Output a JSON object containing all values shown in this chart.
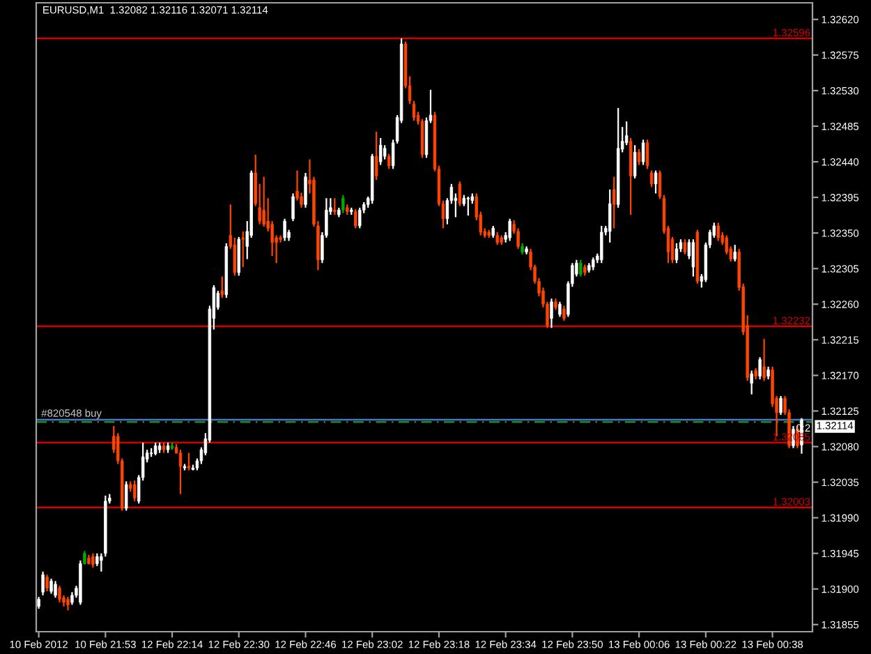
{
  "chart_data": {
    "type": "candlestick",
    "title": "EURUSD,M1  1.32082 1.32116 1.32071 1.32114",
    "categories": [
      "10 Feb 2012",
      null,
      null,
      null,
      null,
      null,
      null,
      null,
      null,
      null,
      null,
      null,
      null,
      null,
      null,
      null,
      "10 Feb 21:53",
      null,
      null,
      null,
      null,
      null,
      null,
      null,
      null,
      null,
      null,
      null,
      null,
      null,
      null,
      null,
      "12 Feb 22:14",
      null,
      null,
      null,
      null,
      null,
      null,
      null,
      null,
      null,
      null,
      null,
      null,
      null,
      null,
      null,
      "12 Feb 22:30",
      null,
      null,
      null,
      null,
      null,
      null,
      null,
      null,
      null,
      null,
      null,
      null,
      null,
      null,
      null,
      "12 Feb 22:46",
      null,
      null,
      null,
      null,
      null,
      null,
      null,
      null,
      null,
      null,
      null,
      null,
      null,
      null,
      null,
      "12 Feb 23:02",
      null,
      null,
      null,
      null,
      null,
      null,
      null,
      null,
      null,
      null,
      null,
      null,
      null,
      null,
      null,
      "12 Feb 23:18",
      null,
      null,
      null,
      null,
      null,
      null,
      null,
      null,
      null,
      null,
      null,
      null,
      null,
      null,
      null,
      "12 Feb 23:34",
      null,
      null,
      null,
      null,
      null,
      null,
      null,
      null,
      null,
      null,
      null,
      null,
      null,
      null,
      null,
      "12 Feb 23:50",
      null,
      null,
      null,
      null,
      null,
      null,
      null,
      null,
      null,
      null,
      null,
      null,
      null,
      null,
      null,
      "13 Feb 00:06",
      null,
      null,
      null,
      null,
      null,
      null,
      null,
      null,
      null,
      null,
      null,
      null,
      null,
      null,
      null,
      "13 Feb 00:22",
      null,
      null,
      null,
      null,
      null,
      null,
      null,
      null,
      null,
      null,
      null,
      null,
      null,
      null,
      null,
      "13 Feb 00:38",
      null,
      null,
      null,
      null,
      null,
      null,
      null
    ],
    "ohlc": [
      [
        1.31878,
        1.3189,
        1.31875,
        1.31887
      ],
      [
        1.31896,
        1.31922,
        1.31892,
        1.31918
      ],
      [
        1.31915,
        1.31918,
        1.31897,
        1.31901
      ],
      [
        1.31897,
        1.31913,
        1.31894,
        1.3191
      ],
      [
        1.31892,
        1.3191,
        1.31889,
        1.31906
      ],
      [
        1.31901,
        1.31904,
        1.31883,
        1.31887
      ],
      [
        1.31889,
        1.31892,
        1.31878,
        1.31883
      ],
      [
        1.31887,
        1.3189,
        1.31873,
        1.3188
      ],
      [
        1.31883,
        1.31896,
        1.3188,
        1.31892
      ],
      [
        1.31892,
        1.31904,
        1.31889,
        1.31901
      ],
      [
        1.31883,
        1.31936,
        1.3188,
        1.31932
      ],
      [
        1.31932,
        1.31948,
        1.31931,
        1.31945
      ],
      [
        1.31939,
        1.31943,
        1.31931,
        1.31932
      ],
      [
        1.31941,
        1.31945,
        1.31927,
        1.31931
      ],
      [
        1.31932,
        1.31945,
        1.31929,
        1.31941
      ],
      [
        1.31936,
        1.31945,
        1.31922,
        1.31941
      ],
      [
        1.31945,
        1.32018,
        1.31941,
        1.32011
      ],
      [
        1.32011,
        1.3202,
        1.32008,
        1.32015
      ],
      [
        1.32093,
        1.32106,
        1.32072,
        1.32076
      ],
      [
        1.32093,
        1.32097,
        1.32058,
        1.32062
      ],
      [
        1.32062,
        1.32065,
        1.31999,
        1.32002
      ],
      [
        1.32002,
        1.32036,
        1.31999,
        1.32032
      ],
      [
        1.32032,
        1.32036,
        1.32023,
        1.32027
      ],
      [
        1.32032,
        1.32037,
        1.32011,
        1.32015
      ],
      [
        1.32011,
        1.32044,
        1.32008,
        1.32041
      ],
      [
        1.32041,
        1.32085,
        1.32037,
        1.32067
      ],
      [
        1.32064,
        1.32076,
        1.3206,
        1.32072
      ],
      [
        1.32071,
        1.32078,
        1.32067,
        1.32072
      ],
      [
        1.32071,
        1.32085,
        1.32069,
        1.32081
      ],
      [
        1.32076,
        1.32085,
        1.32072,
        1.32081
      ],
      [
        1.32081,
        1.32085,
        1.32072,
        1.32076
      ],
      [
        1.32076,
        1.32085,
        1.32072,
        1.32081
      ],
      [
        1.32078,
        1.32085,
        1.32076,
        1.32081
      ],
      [
        1.32079,
        1.32083,
        1.32071,
        1.32072
      ],
      [
        1.32072,
        1.32076,
        1.3202,
        1.32055
      ],
      [
        1.32053,
        1.32058,
        1.3205,
        1.32055
      ],
      [
        1.32055,
        1.32072,
        1.3205,
        1.32053
      ],
      [
        1.32051,
        1.32057,
        1.3205,
        1.32053
      ],
      [
        1.32053,
        1.32065,
        1.3205,
        1.32062
      ],
      [
        1.32062,
        1.32079,
        1.32058,
        1.32076
      ],
      [
        1.32072,
        1.32097,
        1.32069,
        1.3209
      ],
      [
        1.32088,
        1.32258,
        1.32085,
        1.32254
      ],
      [
        1.32242,
        1.32284,
        1.32228,
        1.32281
      ],
      [
        1.32256,
        1.32277,
        1.32253,
        1.32274
      ],
      [
        1.32277,
        1.32295,
        1.32268,
        1.32272
      ],
      [
        1.32272,
        1.32337,
        1.32268,
        1.32333
      ],
      [
        1.32347,
        1.32386,
        1.3233,
        1.32333
      ],
      [
        1.32335,
        1.32344,
        1.32296,
        1.323
      ],
      [
        1.323,
        1.32345,
        1.32296,
        1.32342
      ],
      [
        1.32344,
        1.32352,
        1.32307,
        1.32342
      ],
      [
        1.32333,
        1.32365,
        1.32317,
        1.32352
      ],
      [
        1.32347,
        1.32429,
        1.32344,
        1.32426
      ],
      [
        1.32426,
        1.32449,
        1.32384,
        1.32387
      ],
      [
        1.32382,
        1.32412,
        1.32361,
        1.32365
      ],
      [
        1.32379,
        1.32421,
        1.32358,
        1.32361
      ],
      [
        1.32365,
        1.32394,
        1.32352,
        1.32356
      ],
      [
        1.32361,
        1.32365,
        1.32321,
        1.32338
      ],
      [
        1.32344,
        1.32347,
        1.32312,
        1.32338
      ],
      [
        1.32344,
        1.32347,
        1.32338,
        1.32342
      ],
      [
        1.32344,
        1.32368,
        1.3234,
        1.32365
      ],
      [
        1.32344,
        1.32354,
        1.3234,
        1.32351
      ],
      [
        1.32368,
        1.324,
        1.32365,
        1.32396
      ],
      [
        1.32403,
        1.32429,
        1.32391,
        1.32394
      ],
      [
        1.32396,
        1.32401,
        1.32382,
        1.32386
      ],
      [
        1.32386,
        1.32426,
        1.32382,
        1.32421
      ],
      [
        1.32417,
        1.32443,
        1.324,
        1.32412
      ],
      [
        1.32417,
        1.32421,
        1.32358,
        1.32361
      ],
      [
        1.32359,
        1.32365,
        1.32303,
        1.32316
      ],
      [
        1.32316,
        1.32351,
        1.32312,
        1.32347
      ],
      [
        1.32347,
        1.32394,
        1.32344,
        1.32379
      ],
      [
        1.32377,
        1.32394,
        1.32373,
        1.32382
      ],
      [
        1.32379,
        1.32394,
        1.32373,
        1.32377
      ],
      [
        1.32373,
        1.32382,
        1.3237,
        1.32379
      ],
      [
        1.32379,
        1.32398,
        1.32375,
        1.32394
      ],
      [
        1.32382,
        1.32386,
        1.32373,
        1.32377
      ],
      [
        1.32377,
        1.32382,
        1.32373,
        1.32379
      ],
      [
        1.32377,
        1.3238,
        1.32356,
        1.32359
      ],
      [
        1.32359,
        1.32382,
        1.32356,
        1.32379
      ],
      [
        1.32379,
        1.32389,
        1.32375,
        1.32386
      ],
      [
        1.32386,
        1.32396,
        1.32382,
        1.32394
      ],
      [
        1.32391,
        1.3245,
        1.32387,
        1.32447
      ],
      [
        1.32447,
        1.32478,
        1.32417,
        1.32422
      ],
      [
        1.3244,
        1.3247,
        1.32436,
        1.32461
      ],
      [
        1.32447,
        1.32461,
        1.32443,
        1.32457
      ],
      [
        1.32447,
        1.3245,
        1.32431,
        1.32435
      ],
      [
        1.32435,
        1.32468,
        1.32431,
        1.32464
      ],
      [
        1.32466,
        1.32499,
        1.32463,
        1.32496
      ],
      [
        1.32492,
        1.32596,
        1.32489,
        1.32589
      ],
      [
        1.32589,
        1.32592,
        1.32533,
        1.32536
      ],
      [
        1.32536,
        1.32548,
        1.32513,
        1.32517
      ],
      [
        1.32513,
        1.32517,
        1.32492,
        1.32496
      ],
      [
        1.32499,
        1.32503,
        1.32487,
        1.32491
      ],
      [
        1.32491,
        1.32494,
        1.32445,
        1.32449
      ],
      [
        1.32449,
        1.32496,
        1.32445,
        1.32492
      ],
      [
        1.32492,
        1.32531,
        1.32489,
        1.32499
      ],
      [
        1.32499,
        1.32503,
        1.32428,
        1.32431
      ],
      [
        1.32431,
        1.32435,
        1.32384,
        1.32387
      ],
      [
        1.32387,
        1.32391,
        1.32356,
        1.32368
      ],
      [
        1.32368,
        1.32394,
        1.32361,
        1.32391
      ],
      [
        1.32391,
        1.32412,
        1.32387,
        1.32408
      ],
      [
        1.32391,
        1.324,
        1.3237,
        1.32394
      ],
      [
        1.32412,
        1.32415,
        1.32384,
        1.32387
      ],
      [
        1.32387,
        1.32398,
        1.32384,
        1.32394
      ],
      [
        1.32393,
        1.32396,
        1.32372,
        1.32394
      ],
      [
        1.32391,
        1.324,
        1.32387,
        1.32396
      ],
      [
        1.32396,
        1.324,
        1.32366,
        1.3237
      ],
      [
        1.32373,
        1.32377,
        1.32347,
        1.32351
      ],
      [
        1.32352,
        1.32356,
        1.32344,
        1.32347
      ],
      [
        1.32351,
        1.32354,
        1.32344,
        1.32347
      ],
      [
        1.32347,
        1.32359,
        1.32344,
        1.32356
      ],
      [
        1.32347,
        1.32351,
        1.32335,
        1.32338
      ],
      [
        1.32344,
        1.32347,
        1.32335,
        1.32338
      ],
      [
        1.32342,
        1.32351,
        1.32338,
        1.32347
      ],
      [
        1.32344,
        1.32368,
        1.3234,
        1.32365
      ],
      [
        1.32361,
        1.32366,
        1.32349,
        1.32352
      ],
      [
        1.32352,
        1.32356,
        1.3233,
        1.32333
      ],
      [
        1.32326,
        1.32337,
        1.32323,
        1.32333
      ],
      [
        1.32326,
        1.32333,
        1.32323,
        1.3233
      ],
      [
        1.32326,
        1.3233,
        1.32303,
        1.32307
      ],
      [
        1.32307,
        1.3231,
        1.32286,
        1.32289
      ],
      [
        1.32289,
        1.32293,
        1.3227,
        1.32274
      ],
      [
        1.32277,
        1.32281,
        1.32256,
        1.3226
      ],
      [
        1.3226,
        1.32263,
        1.3223,
        1.32233
      ],
      [
        1.32242,
        1.32267,
        1.3223,
        1.32263
      ],
      [
        1.32263,
        1.32267,
        1.32253,
        1.32256
      ],
      [
        1.32247,
        1.32263,
        1.32244,
        1.3226
      ],
      [
        1.32254,
        1.32258,
        1.32239,
        1.32242
      ],
      [
        1.32247,
        1.32289,
        1.32244,
        1.32286
      ],
      [
        1.32286,
        1.32312,
        1.32282,
        1.32309
      ],
      [
        1.32298,
        1.32316,
        1.32295,
        1.32312
      ],
      [
        1.32298,
        1.32316,
        1.32295,
        1.32312
      ],
      [
        1.32307,
        1.3231,
        1.32296,
        1.323
      ],
      [
        1.32303,
        1.32312,
        1.323,
        1.32309
      ],
      [
        1.32307,
        1.32319,
        1.32303,
        1.32316
      ],
      [
        1.32316,
        1.32324,
        1.32312,
        1.32321
      ],
      [
        1.32316,
        1.32359,
        1.32312,
        1.32351
      ],
      [
        1.32351,
        1.32359,
        1.32347,
        1.32356
      ],
      [
        1.32352,
        1.32405,
        1.32338,
        1.32387
      ],
      [
        1.32405,
        1.32421,
        1.32356,
        1.32386
      ],
      [
        1.32386,
        1.32508,
        1.32382,
        1.32457
      ],
      [
        1.32456,
        1.32484,
        1.32452,
        1.32466
      ],
      [
        1.32464,
        1.32491,
        1.32461,
        1.32473
      ],
      [
        1.32466,
        1.3247,
        1.32373,
        1.32422
      ],
      [
        1.32422,
        1.32461,
        1.32419,
        1.32452
      ],
      [
        1.32452,
        1.32456,
        1.32436,
        1.3244
      ],
      [
        1.3244,
        1.32468,
        1.32436,
        1.32464
      ],
      [
        1.32464,
        1.32468,
        1.32431,
        1.32435
      ],
      [
        1.32426,
        1.32429,
        1.32408,
        1.32412
      ],
      [
        1.32412,
        1.32429,
        1.324,
        1.32426
      ],
      [
        1.32426,
        1.32429,
        1.32393,
        1.32396
      ],
      [
        1.32394,
        1.32398,
        1.32349,
        1.32352
      ],
      [
        1.32356,
        1.32359,
        1.32312,
        1.32326
      ],
      [
        1.32342,
        1.32345,
        1.32312,
        1.32316
      ],
      [
        1.32316,
        1.32337,
        1.32312,
        1.3233
      ],
      [
        1.3233,
        1.32342,
        1.32326,
        1.32338
      ],
      [
        1.32338,
        1.32342,
        1.32323,
        1.32326
      ],
      [
        1.32321,
        1.32342,
        1.32317,
        1.32338
      ],
      [
        1.32307,
        1.32342,
        1.32295,
        1.32338
      ],
      [
        1.32351,
        1.32354,
        1.32286,
        1.32289
      ],
      [
        1.32289,
        1.32298,
        1.32281,
        1.32295
      ],
      [
        1.32291,
        1.32338,
        1.32288,
        1.32335
      ],
      [
        1.32335,
        1.32354,
        1.32331,
        1.32351
      ],
      [
        1.32347,
        1.32363,
        1.32344,
        1.32359
      ],
      [
        1.32359,
        1.32363,
        1.3234,
        1.32344
      ],
      [
        1.32347,
        1.32351,
        1.32335,
        1.32338
      ],
      [
        1.32344,
        1.32347,
        1.32323,
        1.32326
      ],
      [
        1.3233,
        1.32333,
        1.32314,
        1.32317
      ],
      [
        1.32317,
        1.32335,
        1.32314,
        1.32326
      ],
      [
        1.32326,
        1.3233,
        1.32277,
        1.32281
      ],
      [
        1.32282,
        1.32286,
        1.32221,
        1.32225
      ],
      [
        1.32233,
        1.32246,
        1.32163,
        1.32167
      ],
      [
        1.3216,
        1.32176,
        1.32146,
        1.32172
      ],
      [
        1.32176,
        1.32179,
        1.32165,
        1.32169
      ],
      [
        1.32169,
        1.32193,
        1.32165,
        1.3219
      ],
      [
        1.32181,
        1.32216,
        1.32163,
        1.32167
      ],
      [
        1.32169,
        1.32181,
        1.32165,
        1.32177
      ],
      [
        1.32177,
        1.32181,
        1.3213,
        1.32134
      ],
      [
        1.32141,
        1.32144,
        1.32093,
        1.32123
      ],
      [
        1.32123,
        1.32144,
        1.3212,
        1.32141
      ],
      [
        1.32141,
        1.32144,
        1.3212,
        1.32123
      ],
      [
        1.32123,
        1.32127,
        1.32078,
        1.32081
      ],
      [
        1.32081,
        1.32106,
        1.32078,
        1.32102
      ],
      [
        1.32102,
        1.32106,
        1.32078,
        1.32081
      ],
      [
        1.32082,
        1.32116,
        1.32071,
        1.32114
      ]
    ],
    "colors": [
      "#ffffff",
      "#ffffff",
      "#ff4500",
      "#ffffff",
      "#ffffff",
      "#ff4500",
      "#ff4500",
      "#ff4500",
      "#ffffff",
      "#ffffff",
      "#ffffff",
      "#00aa00",
      "#ff4500",
      "#ff4500",
      "#ffffff",
      "#ffffff",
      "#ffffff",
      "#ffffff",
      "#ff4500",
      "#ff4500",
      "#ff4500",
      "#ffffff",
      "#ff4500",
      "#ff4500",
      "#ffffff",
      "#ffffff",
      "#ffffff",
      "#ffffff",
      "#ffffff",
      "#ffffff",
      "#ff4500",
      "#ffffff",
      "#00aa00",
      "#ff4500",
      "#ff4500",
      "#ffffff",
      "#ff4500",
      "#ffffff",
      "#ffffff",
      "#ffffff",
      "#ffffff",
      "#ffffff",
      "#ffffff",
      "#ffffff",
      "#ff4500",
      "#ffffff",
      "#ff4500",
      "#ff4500",
      "#ffffff",
      "#ff4500",
      "#ffffff",
      "#ffffff",
      "#ff4500",
      "#ff4500",
      "#ff4500",
      "#ff4500",
      "#ff4500",
      "#ff4500",
      "#ff4500",
      "#ffffff",
      "#ffffff",
      "#ffffff",
      "#ff4500",
      "#ff4500",
      "#ffffff",
      "#ff4500",
      "#ff4500",
      "#ff4500",
      "#ffffff",
      "#ffffff",
      "#ffffff",
      "#ff4500",
      "#ffffff",
      "#00aa00",
      "#ff4500",
      "#ffffff",
      "#ff4500",
      "#ffffff",
      "#ffffff",
      "#ffffff",
      "#ffffff",
      "#ff4500",
      "#ffffff",
      "#ffffff",
      "#ff4500",
      "#ffffff",
      "#ffffff",
      "#ffffff",
      "#ff4500",
      "#ff4500",
      "#ff4500",
      "#ff4500",
      "#ff4500",
      "#ffffff",
      "#ffffff",
      "#ff4500",
      "#ff4500",
      "#ff4500",
      "#ffffff",
      "#ffffff",
      "#ffffff",
      "#ff4500",
      "#ffffff",
      "#ffffff",
      "#ffffff",
      "#ff4500",
      "#ff4500",
      "#ff4500",
      "#ff4500",
      "#ffffff",
      "#ff4500",
      "#ff4500",
      "#ffffff",
      "#ffffff",
      "#ff4500",
      "#ff4500",
      "#00aa00",
      "#ffffff",
      "#ff4500",
      "#ff4500",
      "#ff4500",
      "#ff4500",
      "#ff4500",
      "#ffffff",
      "#ff4500",
      "#ffffff",
      "#ff4500",
      "#ffffff",
      "#ffffff",
      "#ffffff",
      "#00aa00",
      "#ff4500",
      "#ffffff",
      "#ffffff",
      "#ffffff",
      "#ffffff",
      "#ffffff",
      "#ffffff",
      "#ff4500",
      "#ffffff",
      "#ffffff",
      "#ffffff",
      "#ff4500",
      "#ffffff",
      "#ff4500",
      "#ffffff",
      "#ff4500",
      "#ff4500",
      "#ffffff",
      "#ff4500",
      "#ff4500",
      "#ff4500",
      "#ff4500",
      "#ffffff",
      "#ffffff",
      "#ff4500",
      "#ffffff",
      "#ffffff",
      "#ff4500",
      "#ffffff",
      "#ffffff",
      "#ffffff",
      "#ffffff",
      "#ff4500",
      "#ff4500",
      "#ff4500",
      "#ff4500",
      "#ffffff",
      "#ff4500",
      "#ff4500",
      "#ff4500",
      "#ffffff",
      "#ff4500",
      "#ffffff",
      "#ff4500",
      "#ffffff",
      "#ff4500",
      "#ff4500",
      "#ffffff",
      "#ff4500",
      "#ff4500",
      "#ffffff",
      "#ff4500",
      "#ffffff"
    ],
    "ylim": [
      1.31846,
      1.32641
    ],
    "yticks": [
      {
        "value": 1.3262,
        "label": "1.32620"
      },
      1.32575,
      {
        "value": 1.3253,
        "label": "1.32530"
      },
      1.32485,
      {
        "value": 1.3244,
        "label": "1.32440"
      },
      1.32395,
      {
        "value": 1.3235,
        "label": "1.32350"
      },
      1.32305,
      {
        "value": 1.3226,
        "label": "1.32260"
      },
      1.32215,
      {
        "value": 1.3217,
        "label": "1.32170"
      },
      1.32125,
      {
        "value": 1.3208,
        "label": "1.32080"
      },
      1.32035,
      {
        "value": 1.3199,
        "label": "1.31990"
      },
      1.31945,
      {
        "value": 1.319,
        "label": "1.31900"
      },
      1.31855
    ],
    "ref_lines": [
      {
        "axis": "y",
        "value": 1.32596,
        "label": "1.32596",
        "color": "#d40000",
        "line_style": "solid"
      },
      {
        "axis": "y",
        "value": 1.32232,
        "label": "1.32232",
        "color": "#d40000",
        "line_style": "solid"
      },
      {
        "axis": "y",
        "value": 1.32085,
        "label": "1.32085",
        "color": "#d40000",
        "line_style": "solid"
      },
      {
        "axis": "y",
        "value": 1.32003,
        "label": "1.32003",
        "color": "#d40000",
        "line_style": "solid"
      },
      {
        "axis": "y",
        "value": 1.32114,
        "label": "1.32114",
        "color": "#4a78c8",
        "line_style": "solid"
      },
      {
        "axis": "y",
        "value": 1.32111,
        "label": "#820548 buy",
        "color": "#1e8c1e",
        "line_style": "dashed"
      }
    ],
    "annotations": [
      {
        "text": "0:2",
        "y": 1.32111
      }
    ],
    "grid": false
  }
}
